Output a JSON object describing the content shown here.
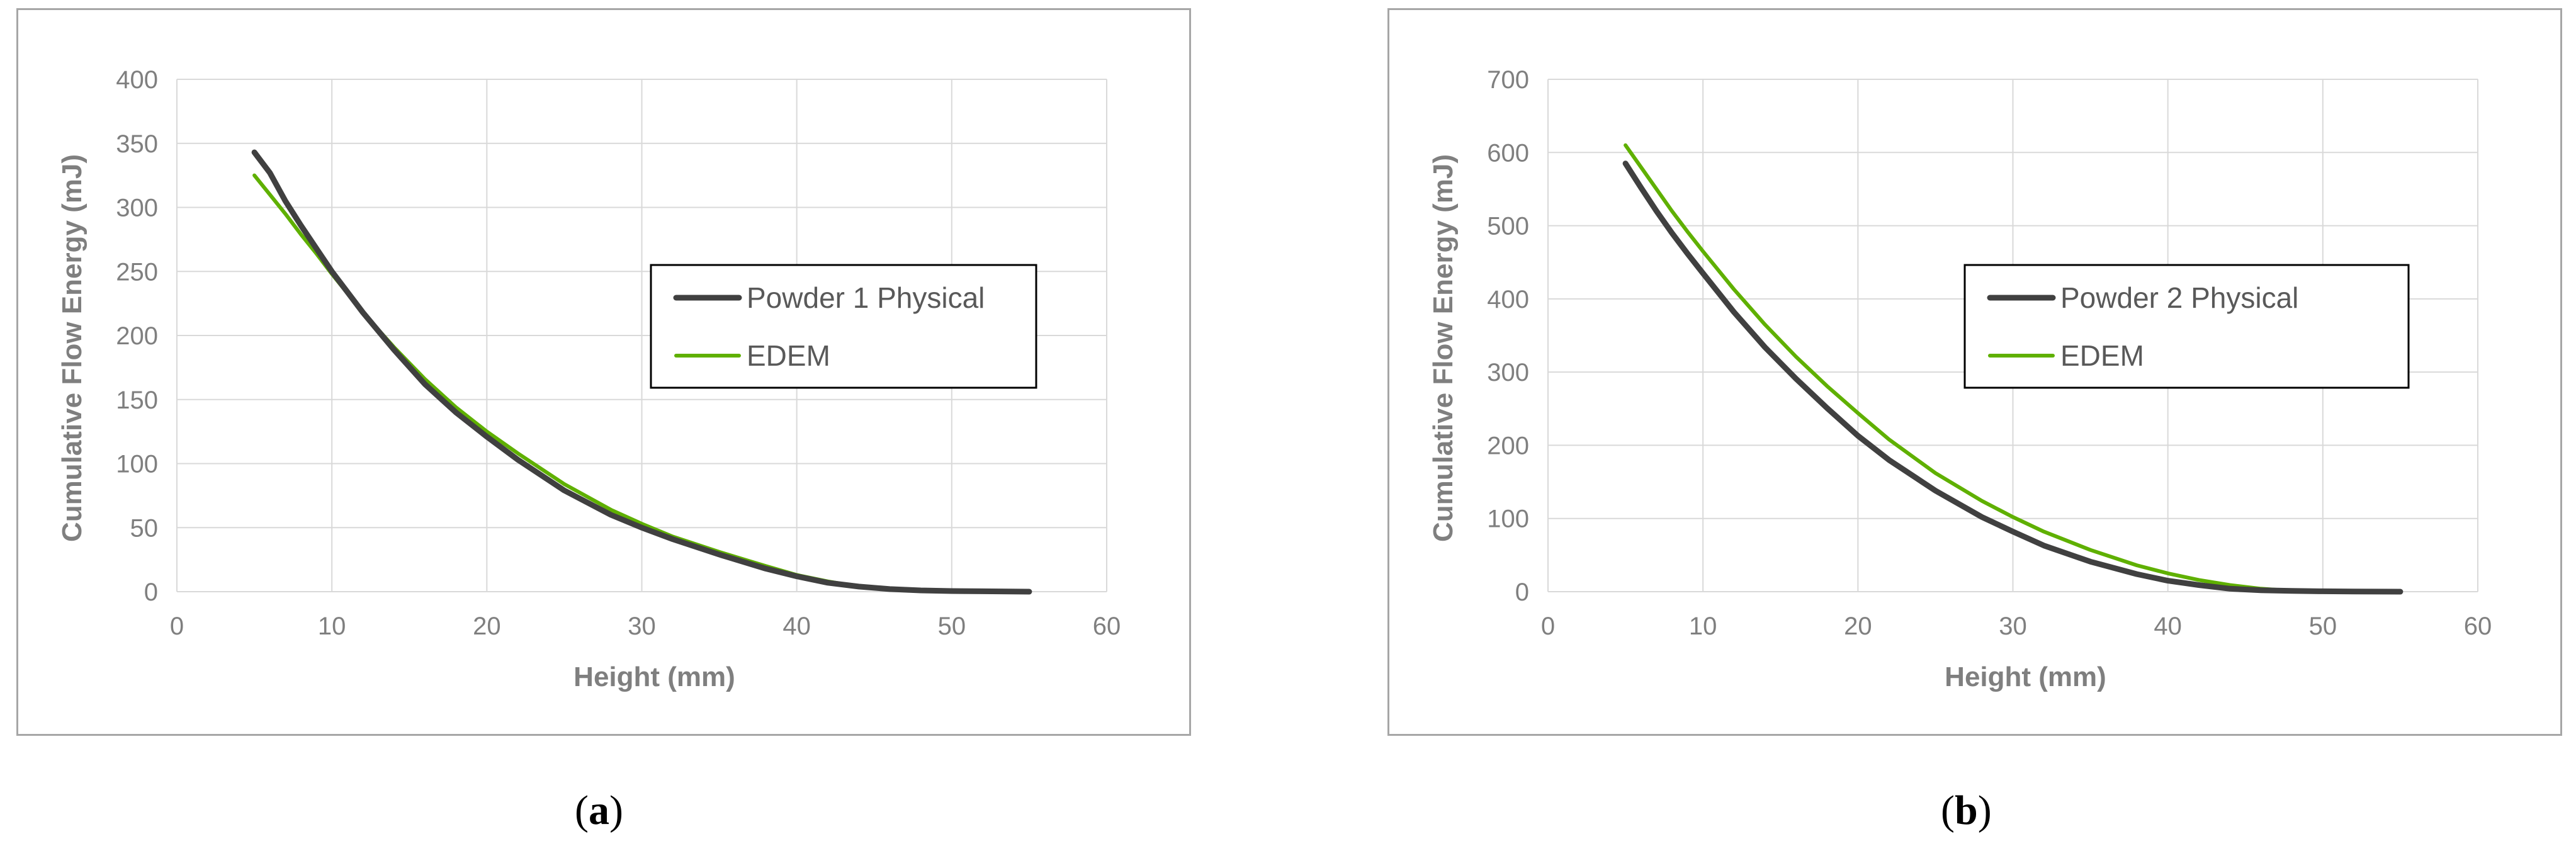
{
  "panels": [
    {
      "caption_letter": "a",
      "chart_data": {
        "type": "line",
        "title": "",
        "xlabel": "Height (mm)",
        "ylabel": "Cumulative Flow Energy (mJ)",
        "xlim": [
          0,
          60
        ],
        "ylim": [
          0,
          400
        ],
        "xticks": [
          0,
          10,
          20,
          30,
          40,
          50,
          60
        ],
        "yticks": [
          0,
          50,
          100,
          150,
          200,
          250,
          300,
          350,
          400
        ],
        "grid": true,
        "legend_position": "center-right",
        "series": [
          {
            "name": "Powder 1 Physical",
            "color": "#404040",
            "x": [
              5,
              6,
              7,
              8,
              9,
              10,
              12,
              14,
              16,
              18,
              20,
              22,
              25,
              28,
              30,
              32,
              35,
              38,
              40,
              42,
              44,
              46,
              48,
              50,
              52,
              55
            ],
            "y": [
              343,
              327,
              305,
              286,
              268,
              250,
              218,
              189,
              162,
              140,
              121,
              103,
              79,
              60,
              50,
              41,
              29,
              18,
              12,
              7,
              4,
              2,
              1,
              0.5,
              0.3,
              0
            ]
          },
          {
            "name": "EDEM",
            "color": "#5fb000",
            "x": [
              5,
              6,
              7,
              8,
              9,
              10,
              12,
              14,
              16,
              18,
              20,
              22,
              25,
              28,
              30,
              32,
              35,
              38,
              40,
              42,
              44,
              46,
              48,
              50,
              52,
              55
            ],
            "y": [
              325,
              310,
              295,
              279,
              264,
              248,
              218,
              191,
              166,
              144,
              125,
              108,
              84,
              64,
              53,
              43,
              31,
              20,
              13,
              8,
              4,
              2,
              1,
              0.5,
              0.3,
              0
            ]
          }
        ]
      }
    },
    {
      "caption_letter": "b",
      "chart_data": {
        "type": "line",
        "title": "",
        "xlabel": "Height (mm)",
        "ylabel": "Cumulative Flow Energy (mJ)",
        "xlim": [
          0,
          60
        ],
        "ylim": [
          0,
          700
        ],
        "xticks": [
          0,
          10,
          20,
          30,
          40,
          50,
          60
        ],
        "yticks": [
          0,
          100,
          200,
          300,
          400,
          500,
          600,
          700
        ],
        "grid": true,
        "legend_position": "center-right",
        "series": [
          {
            "name": "Powder 2 Physical",
            "color": "#404040",
            "x": [
              5,
              6,
              7,
              8,
              9,
              10,
              12,
              14,
              16,
              18,
              20,
              22,
              25,
              28,
              30,
              32,
              35,
              38,
              40,
              42,
              44,
              46,
              48,
              50,
              52,
              55
            ],
            "y": [
              585,
              552,
              520,
              490,
              462,
              435,
              382,
              334,
              291,
              251,
              213,
              180,
              138,
              102,
              82,
              63,
              41,
              24,
              15,
              9,
              4,
              2,
              1,
              0.5,
              0.3,
              0
            ]
          },
          {
            "name": "EDEM",
            "color": "#5fb000",
            "x": [
              5,
              6,
              7,
              8,
              9,
              10,
              12,
              14,
              16,
              18,
              20,
              22,
              25,
              28,
              30,
              32,
              35,
              38,
              40,
              42,
              44,
              46,
              48,
              50,
              52,
              55
            ],
            "y": [
              610,
              580,
              550,
              520,
              492,
              465,
              413,
              365,
              321,
              281,
              244,
              208,
              162,
              124,
              102,
              82,
              57,
              36,
              25,
              16,
              9,
              4,
              1,
              0.5,
              0.3,
              0
            ]
          }
        ]
      }
    }
  ]
}
